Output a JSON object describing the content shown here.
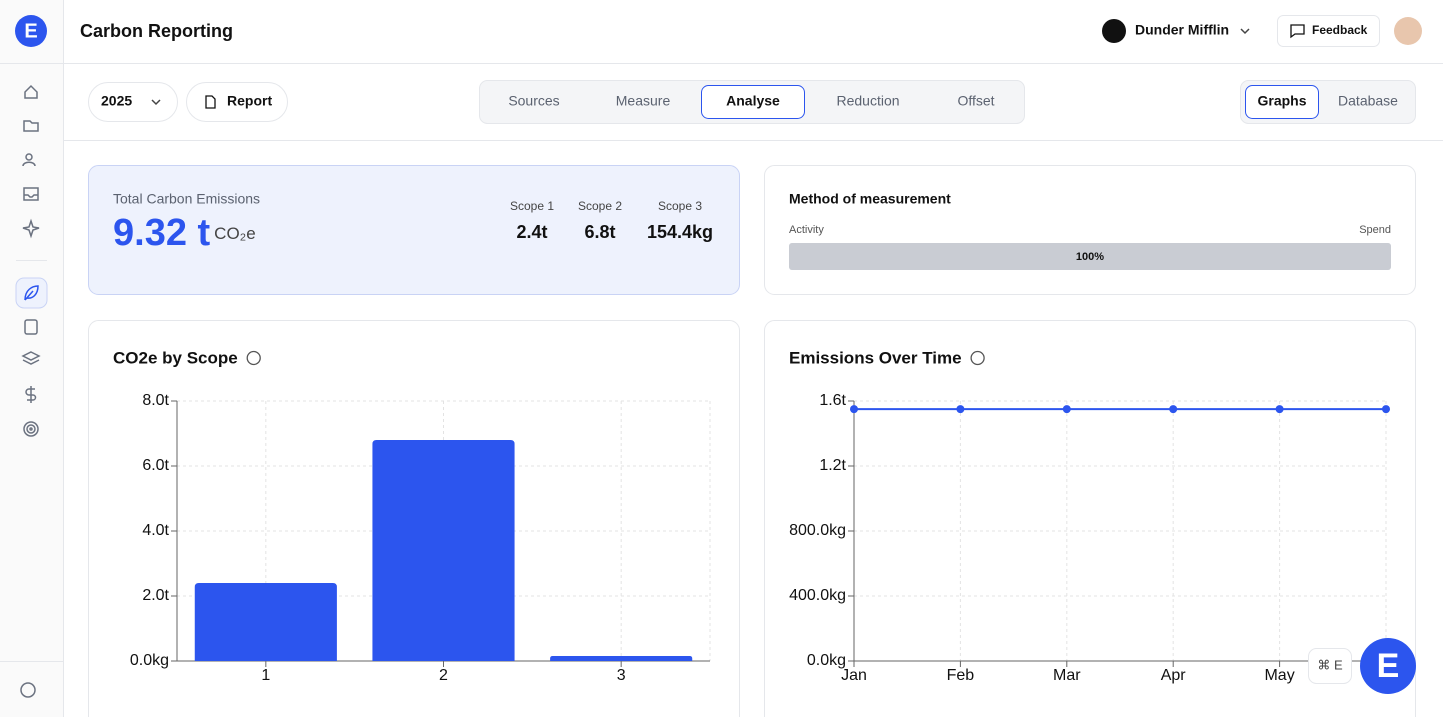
{
  "header": {
    "logo": "E",
    "title": "Carbon Reporting",
    "org": "Dunder Mifflin",
    "feedback": "Feedback"
  },
  "toolbar": {
    "year": "2025",
    "report": "Report",
    "tabs": [
      {
        "label": "Sources",
        "active": false
      },
      {
        "label": "Measure",
        "active": false
      },
      {
        "label": "Analyse",
        "active": true
      },
      {
        "label": "Reduction",
        "active": false
      },
      {
        "label": "Offset",
        "active": false
      }
    ],
    "views": [
      {
        "label": "Graphs",
        "active": true
      },
      {
        "label": "Database",
        "active": false
      }
    ]
  },
  "summary": {
    "label": "Total Carbon Emissions",
    "value": "9.32 t",
    "unit": "CO₂e",
    "scopes": [
      {
        "label": "Scope 1",
        "value": "2.4t"
      },
      {
        "label": "Scope 2",
        "value": "6.8t"
      },
      {
        "label": "Scope 3",
        "value": "154.4kg"
      }
    ]
  },
  "method": {
    "title": "Method of measurement",
    "left": "Activity",
    "right": "Spend",
    "share": 100,
    "share_label": "100%"
  },
  "chart_data": [
    {
      "type": "bar",
      "title": "CO2e by Scope",
      "categories": [
        "1",
        "2",
        "3"
      ],
      "values": [
        2.4,
        6.8,
        0.1544
      ],
      "color": "#2c55ee",
      "ylim": [
        0,
        8
      ],
      "yticks": [
        {
          "value": 0,
          "label": "0.0kg"
        },
        {
          "value": 2,
          "label": "2.0t"
        },
        {
          "value": 4,
          "label": "4.0t"
        },
        {
          "value": 6,
          "label": "6.0t"
        },
        {
          "value": 8,
          "label": "8.0t"
        }
      ],
      "grid": true
    },
    {
      "type": "line",
      "title": "Emissions Over Time",
      "categories": [
        "Jan",
        "Feb",
        "Mar",
        "Apr",
        "May",
        null
      ],
      "values": [
        1.55,
        1.55,
        1.55,
        1.55,
        1.55,
        1.55
      ],
      "color": "#2c55ee",
      "ylim": [
        0,
        1.6
      ],
      "yticks": [
        {
          "value": 0,
          "label": "0.0kg"
        },
        {
          "value": 0.4,
          "label": "400.0kg"
        },
        {
          "value": 0.8,
          "label": "800.0kg"
        },
        {
          "value": 1.2,
          "label": "1.2t"
        },
        {
          "value": 1.6,
          "label": "1.6t"
        }
      ],
      "grid": true
    }
  ],
  "shortcut": "⌘ E",
  "fab": "E"
}
